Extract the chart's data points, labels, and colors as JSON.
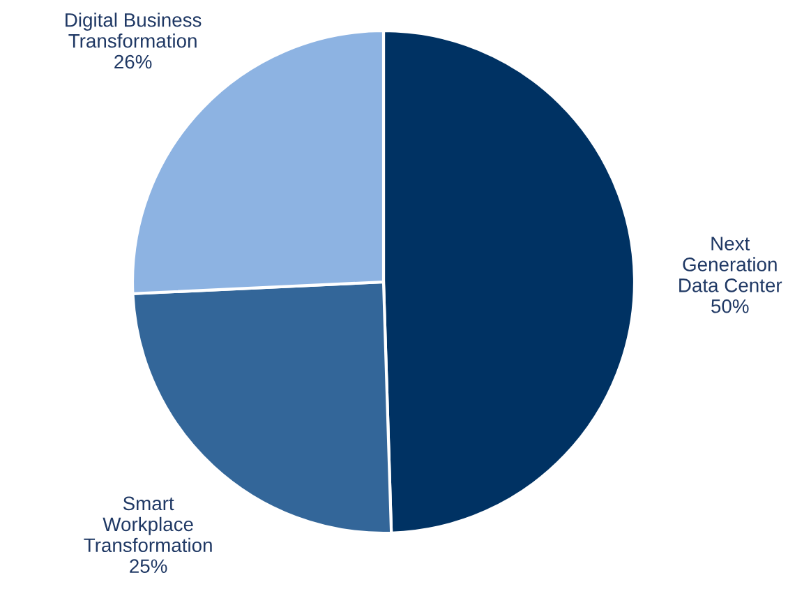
{
  "chart_data": {
    "type": "pie",
    "categories": [
      "Next\nGeneration\nData Center",
      "Smart\nWorkplace\nTransformation",
      "Digital Business\nTransformation"
    ],
    "values": [
      50,
      25,
      26
    ],
    "value_labels": [
      "50%",
      "25%",
      "26%"
    ],
    "colors": [
      "#003263",
      "#336699",
      "#8db3e2"
    ]
  }
}
